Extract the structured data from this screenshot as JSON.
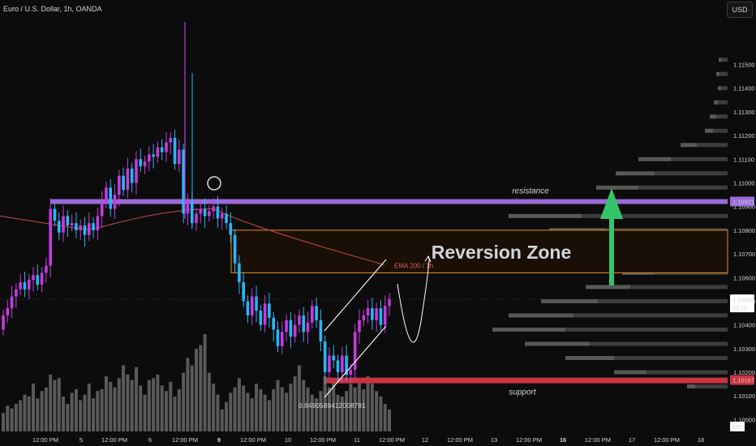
{
  "header": {
    "symbol_line": "Euro / U.S. Dollar, 1h, OANDA",
    "currency": "USD"
  },
  "colors": {
    "background": "#0c0c0c",
    "bull": "#c43be0",
    "bear": "#29b6f6",
    "resistance": "#9a6ad8",
    "support": "#c9343e",
    "zone_border": "#e88a1a",
    "zone_fill": "#1a0f06",
    "ema": "#c84a4a",
    "volume": "#5a5a5a",
    "profile_dark": "#3d3d3d",
    "profile_light": "#585858",
    "up_arrow": "#36c46a"
  },
  "chart_data": {
    "type": "candlestick",
    "ylim": [
      1.0995,
      1.1168
    ],
    "y_ticks": [
      "1.11500",
      "1.11400",
      "1.11300",
      "1.11200",
      "1.11100",
      "1.11000",
      "1.10900",
      "1.10800",
      "1.10700",
      "1.10600",
      "1.10500",
      "1.10400",
      "1.10300",
      "1.10200",
      "1.10100",
      "1.10000"
    ],
    "y_tick_values": [
      1.115,
      1.114,
      1.113,
      1.112,
      1.111,
      1.11,
      1.109,
      1.108,
      1.107,
      1.106,
      1.105,
      1.104,
      1.103,
      1.102,
      1.101,
      1.1
    ],
    "x_ticks": [
      "12:00 PM",
      "5",
      "12:00 PM",
      "6",
      "12:00 PM",
      "9",
      "12:00 PM",
      "10",
      "12:00 PM",
      "11",
      "12:00 PM",
      "12",
      "12:00 PM",
      "13",
      "12:00 PM",
      "16",
      "12:00 PM",
      "17",
      "12:00 PM",
      "18"
    ],
    "x_tick_bold": [
      false,
      false,
      false,
      false,
      false,
      true,
      false,
      false,
      false,
      false,
      false,
      false,
      false,
      false,
      false,
      true,
      false,
      false,
      false,
      false
    ],
    "closes": [
      1.1044,
      1.1047,
      1.1052,
      1.1055,
      1.1058,
      1.1055,
      1.1059,
      1.1061,
      1.1057,
      1.1062,
      1.1065,
      1.1089,
      1.1084,
      1.1079,
      1.1086,
      1.1082,
      1.1083,
      1.108,
      1.1082,
      1.1078,
      1.1083,
      1.108,
      1.1086,
      1.1092,
      1.1098,
      1.1089,
      1.1095,
      1.1103,
      1.1097,
      1.1106,
      1.11,
      1.111,
      1.1107,
      1.1109,
      1.1112,
      1.1111,
      1.1115,
      1.1113,
      1.1117,
      1.1119,
      1.1108,
      1.1114,
      1.1087,
      1.1092,
      1.1083,
      1.1087,
      1.1089,
      1.1086,
      1.1088,
      1.109,
      1.1085,
      1.1087,
      1.1083,
      1.1078,
      1.1066,
      1.1058,
      1.105,
      1.1044,
      1.1052,
      1.1046,
      1.104,
      1.1049,
      1.1043,
      1.1038,
      1.1031,
      1.1037,
      1.1042,
      1.1035,
      1.104,
      1.1044,
      1.1037,
      1.1041,
      1.1048,
      1.1042,
      1.1033,
      1.102,
      1.1027,
      1.1025,
      1.102,
      1.1027,
      1.1019,
      1.1021,
      1.1037,
      1.1042,
      1.1044,
      1.1047,
      1.1042,
      1.1047,
      1.104,
      1.1048,
      1.1051
    ],
    "volumes": [
      20,
      28,
      25,
      30,
      34,
      40,
      38,
      52,
      36,
      44,
      48,
      62,
      56,
      58,
      38,
      30,
      42,
      46,
      34,
      40,
      52,
      36,
      44,
      46,
      60,
      54,
      48,
      58,
      72,
      62,
      56,
      70,
      50,
      40,
      56,
      58,
      62,
      50,
      44,
      54,
      38,
      46,
      64,
      80,
      72,
      90,
      94,
      106,
      64,
      52,
      40,
      24,
      32,
      42,
      48,
      58,
      50,
      42,
      36,
      52,
      46,
      40,
      34,
      46,
      56,
      48,
      42,
      52,
      60,
      72,
      56,
      48,
      40,
      36,
      44,
      60,
      48,
      54,
      40,
      38,
      44,
      52,
      48,
      56,
      46,
      60,
      52,
      44,
      38,
      30,
      24
    ],
    "resistance_price": 1.10921,
    "support_price": 1.10167,
    "zone_range": [
      1.1062,
      1.108
    ],
    "last_price": 1.10508,
    "countdown": "53:13",
    "volume_label": "535",
    "profile_bars": [
      {
        "p": 1.1152,
        "d": 8,
        "l": 3
      },
      {
        "p": 1.1146,
        "d": 10,
        "l": 4
      },
      {
        "p": 1.114,
        "d": 8,
        "l": 4
      },
      {
        "p": 1.1134,
        "d": 12,
        "l": 5
      },
      {
        "p": 1.1128,
        "d": 14,
        "l": 8
      },
      {
        "p": 1.1122,
        "d": 18,
        "l": 10
      },
      {
        "p": 1.1116,
        "d": 38,
        "l": 20
      },
      {
        "p": 1.111,
        "d": 70,
        "l": 40
      },
      {
        "p": 1.1104,
        "d": 90,
        "l": 48
      },
      {
        "p": 1.1098,
        "d": 110,
        "l": 52
      },
      {
        "p": 1.1092,
        "d": 128,
        "l": 60
      },
      {
        "p": 1.1086,
        "d": 180,
        "l": 90
      },
      {
        "p": 1.108,
        "d": 150,
        "l": 70
      },
      {
        "p": 1.1074,
        "d": 120,
        "l": 60
      },
      {
        "p": 1.1068,
        "d": 100,
        "l": 50
      },
      {
        "p": 1.1062,
        "d": 90,
        "l": 40
      },
      {
        "p": 1.1056,
        "d": 120,
        "l": 55
      },
      {
        "p": 1.105,
        "d": 160,
        "l": 70
      },
      {
        "p": 1.1044,
        "d": 190,
        "l": 80
      },
      {
        "p": 1.1038,
        "d": 200,
        "l": 90
      },
      {
        "p": 1.1032,
        "d": 170,
        "l": 80
      },
      {
        "p": 1.1026,
        "d": 140,
        "l": 60
      },
      {
        "p": 1.102,
        "d": 100,
        "l": 40
      },
      {
        "p": 1.1014,
        "d": 40,
        "l": 10
      }
    ],
    "annotations": {
      "resistance": "resistance",
      "support": "support",
      "reversion_zone": "Reversion Zone",
      "ema_label": "EMA 200 / 1h",
      "fib_value": "0.8490589412008781"
    }
  }
}
